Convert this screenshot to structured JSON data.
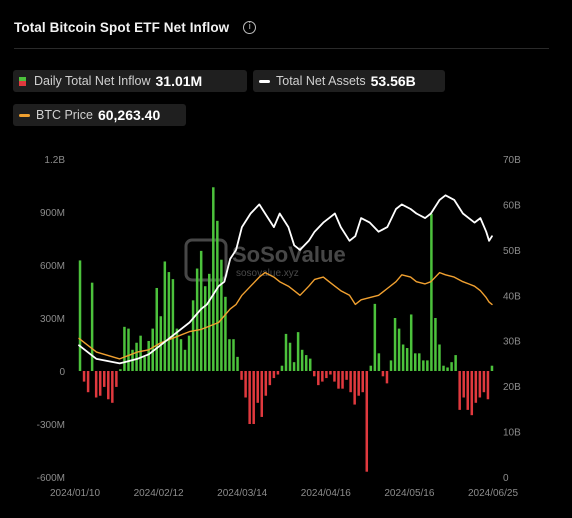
{
  "header": {
    "title": "Total Bitcoin Spot ETF Net Inflow",
    "info_icon": "info-icon"
  },
  "legend": [
    {
      "label": "Daily Total Net Inflow",
      "value": "31.01M",
      "swatch": "bar"
    },
    {
      "label": "Total Net Assets",
      "value": "53.56B",
      "swatch": "line",
      "color": "#ffffff"
    },
    {
      "label": "BTC Price",
      "value": "60,263.40",
      "swatch": "line",
      "color": "#f0a030"
    }
  ],
  "watermark": {
    "brand": "SoSoValue",
    "url": "sosovalue.xyz"
  },
  "colors": {
    "inflow": "#4cc23c",
    "outflow": "#e0393e",
    "assets": "#ffffff",
    "price": "#f0a030",
    "background": "#000000"
  },
  "chart_data": {
    "type": "bar",
    "title": "Total Bitcoin Spot ETF Net Inflow",
    "x_tick_labels": [
      "2024/01/10",
      "2024/02/12",
      "2024/03/14",
      "2024/04/16",
      "2024/05/16",
      "2024/06/25"
    ],
    "y_left": {
      "ticks": [
        "1.2B",
        "900M",
        "600M",
        "300M",
        "0",
        "-300M",
        "-600M"
      ],
      "min": -600,
      "max": 1200,
      "unit": "M"
    },
    "y_right": {
      "ticks": [
        "70B",
        "60B",
        "50B",
        "40B",
        "30B",
        "20B",
        "10B",
        "0"
      ],
      "min": 0,
      "max": 70,
      "unit": "B"
    },
    "grid": false,
    "legend_position": "top-left",
    "series": [
      {
        "name": "Daily Total Net Inflow",
        "type": "bar",
        "axis": "left",
        "unit": "M",
        "values": [
          626,
          -60,
          -120,
          500,
          -150,
          -140,
          -90,
          -160,
          -180,
          -90,
          10,
          250,
          240,
          120,
          160,
          200,
          80,
          170,
          240,
          470,
          310,
          620,
          560,
          520,
          240,
          180,
          120,
          200,
          400,
          580,
          680,
          480,
          550,
          1040,
          850,
          630,
          420,
          180,
          180,
          80,
          -50,
          -150,
          -300,
          -300,
          -180,
          -260,
          -140,
          -80,
          -40,
          -20,
          30,
          210,
          160,
          50,
          220,
          120,
          90,
          70,
          -30,
          -80,
          -60,
          -40,
          -20,
          -60,
          -100,
          -100,
          -50,
          -120,
          -190,
          -140,
          -120,
          -570,
          30,
          380,
          100,
          -30,
          -70,
          60,
          300,
          240,
          150,
          130,
          320,
          100,
          100,
          60,
          60,
          890,
          300,
          150,
          30,
          20,
          50,
          90,
          -220,
          -150,
          -220,
          -250,
          -180,
          -150,
          -120,
          -160,
          30
        ]
      },
      {
        "name": "Total Net Assets",
        "type": "line",
        "axis": "right",
        "unit": "B",
        "points": [
          [
            0,
            29
          ],
          [
            6,
            26
          ],
          [
            14,
            25
          ],
          [
            20,
            26
          ],
          [
            24,
            27
          ],
          [
            28,
            29
          ],
          [
            34,
            32
          ],
          [
            38,
            34
          ],
          [
            42,
            37
          ],
          [
            44,
            38
          ],
          [
            48,
            42
          ],
          [
            50,
            43
          ],
          [
            52,
            48
          ],
          [
            54,
            50
          ],
          [
            56,
            55
          ],
          [
            59,
            58
          ],
          [
            62,
            60
          ],
          [
            64,
            58
          ],
          [
            67,
            55
          ],
          [
            69,
            58
          ],
          [
            72,
            55
          ],
          [
            74,
            51
          ],
          [
            76,
            50
          ],
          [
            79,
            52
          ],
          [
            81,
            54
          ],
          [
            84,
            56
          ],
          [
            86,
            57
          ],
          [
            88,
            58
          ],
          [
            90,
            55
          ],
          [
            93,
            52
          ],
          [
            95,
            53
          ],
          [
            97,
            57
          ],
          [
            100,
            56
          ],
          [
            103,
            54
          ],
          [
            106,
            55
          ],
          [
            109,
            59
          ],
          [
            111,
            60
          ],
          [
            114,
            59
          ],
          [
            116,
            58
          ],
          [
            119,
            57
          ],
          [
            121,
            58
          ],
          [
            124,
            61
          ],
          [
            126,
            62
          ],
          [
            129,
            61
          ],
          [
            132,
            58
          ],
          [
            134,
            57
          ],
          [
            136,
            56
          ],
          [
            138,
            57
          ],
          [
            140,
            54
          ],
          [
            141,
            52
          ],
          [
            142,
            53
          ]
        ]
      },
      {
        "name": "BTC Price",
        "type": "line",
        "axis": "right",
        "unit": "USD",
        "points": [
          [
            0,
            30.5
          ],
          [
            6,
            27.5
          ],
          [
            14,
            26
          ],
          [
            20,
            27.5
          ],
          [
            24,
            28
          ],
          [
            28,
            29.5
          ],
          [
            34,
            31
          ],
          [
            38,
            32
          ],
          [
            42,
            32.5
          ],
          [
            44,
            33
          ],
          [
            48,
            34
          ],
          [
            52,
            37
          ],
          [
            54,
            38
          ],
          [
            56,
            40
          ],
          [
            59,
            42
          ],
          [
            62,
            44
          ],
          [
            64,
            45
          ],
          [
            67,
            44
          ],
          [
            69,
            43
          ],
          [
            72,
            42
          ],
          [
            74,
            41
          ],
          [
            76,
            40
          ],
          [
            79,
            42
          ],
          [
            81,
            43.5
          ],
          [
            84,
            44
          ],
          [
            86,
            43
          ],
          [
            88,
            42
          ],
          [
            90,
            41
          ],
          [
            93,
            40
          ],
          [
            95,
            38
          ],
          [
            97,
            39
          ],
          [
            100,
            39.5
          ],
          [
            103,
            40
          ],
          [
            106,
            41.5
          ],
          [
            109,
            43
          ],
          [
            111,
            44.5
          ],
          [
            114,
            44
          ],
          [
            116,
            43
          ],
          [
            119,
            42.5
          ],
          [
            121,
            43
          ],
          [
            124,
            45
          ],
          [
            126,
            44.5
          ],
          [
            129,
            44
          ],
          [
            132,
            43
          ],
          [
            134,
            42.5
          ],
          [
            136,
            42
          ],
          [
            138,
            41
          ],
          [
            140,
            39.5
          ],
          [
            141,
            38.5
          ],
          [
            142,
            38
          ]
        ]
      }
    ]
  }
}
